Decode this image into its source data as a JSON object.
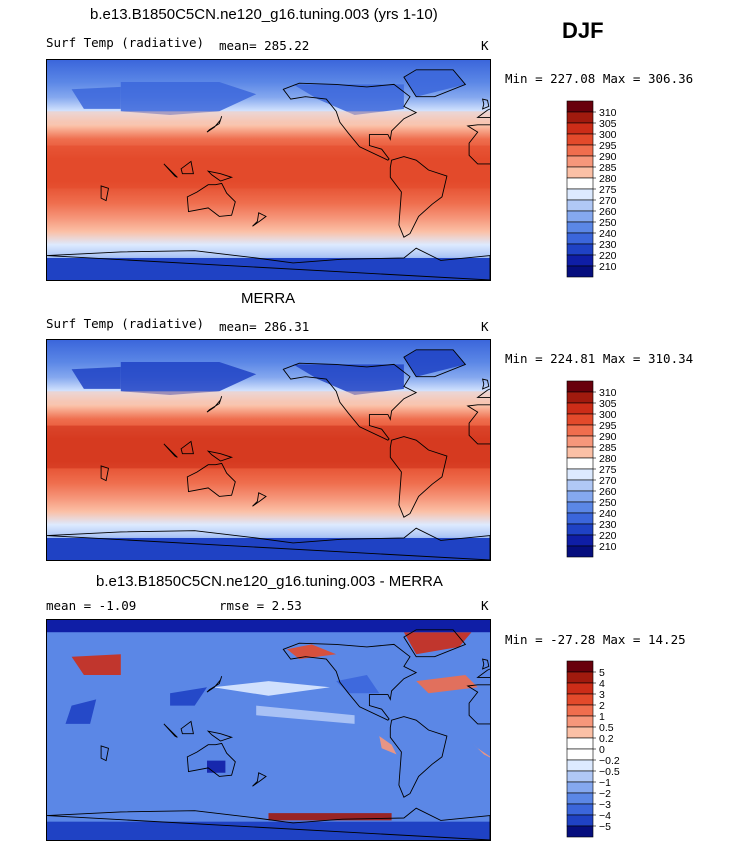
{
  "season": "DJF",
  "panels": [
    {
      "title": "b.e13.B1850C5CN.ne120_g16.tuning.003 (yrs 1-10)",
      "variable": "Surf Temp (radiative)",
      "stat": "mean=  285.22",
      "units": "K",
      "minmax": "Min = 227.08 Max = 306.36",
      "colorbar_labels": [
        "310",
        "305",
        "300",
        "295",
        "290",
        "285",
        "280",
        "275",
        "270",
        "260",
        "250",
        "240",
        "230",
        "220",
        "210"
      ],
      "kind": "model"
    },
    {
      "title": "MERRA",
      "variable": "Surf Temp (radiative)",
      "stat": "mean=  286.31",
      "units": "K",
      "minmax": "Min = 224.81 Max = 310.34",
      "colorbar_labels": [
        "310",
        "305",
        "300",
        "295",
        "290",
        "285",
        "280",
        "275",
        "270",
        "260",
        "250",
        "240",
        "230",
        "220",
        "210"
      ],
      "kind": "obs"
    },
    {
      "title": "b.e13.B1850C5CN.ne120_g16.tuning.003 - MERRA",
      "variable": "mean =   -1.09",
      "stat": "rmse =    2.53",
      "units": "K",
      "minmax": "Min = -27.28 Max =  14.25",
      "colorbar_labels": [
        "5",
        "4",
        "3",
        "2",
        "1",
        "0.5",
        "0.2",
        "0",
        "−0.2",
        "−0.5",
        "−1",
        "−2",
        "−3",
        "−4",
        "−5"
      ],
      "kind": "diff"
    }
  ],
  "colors": {
    "abs_scale": [
      "#68000c",
      "#a01a0e",
      "#cc2d18",
      "#e34a2b",
      "#ef6e4e",
      "#f6977b",
      "#fbc0a6",
      "#ffffff",
      "#ddeaff",
      "#b0c8f6",
      "#85a8ef",
      "#5b87e6",
      "#3b66db",
      "#1f42c4",
      "#0f1ea6",
      "#060e7e"
    ],
    "diff_scale": [
      "#68000c",
      "#a01a0e",
      "#cc2d18",
      "#e34a2b",
      "#ef6e4e",
      "#f6977b",
      "#fbc0a6",
      "#ffffff",
      "#ffffff",
      "#ddeaff",
      "#b0c8f6",
      "#85a8ef",
      "#5b87e6",
      "#3b66db",
      "#1f42c4",
      "#060e7e"
    ]
  }
}
